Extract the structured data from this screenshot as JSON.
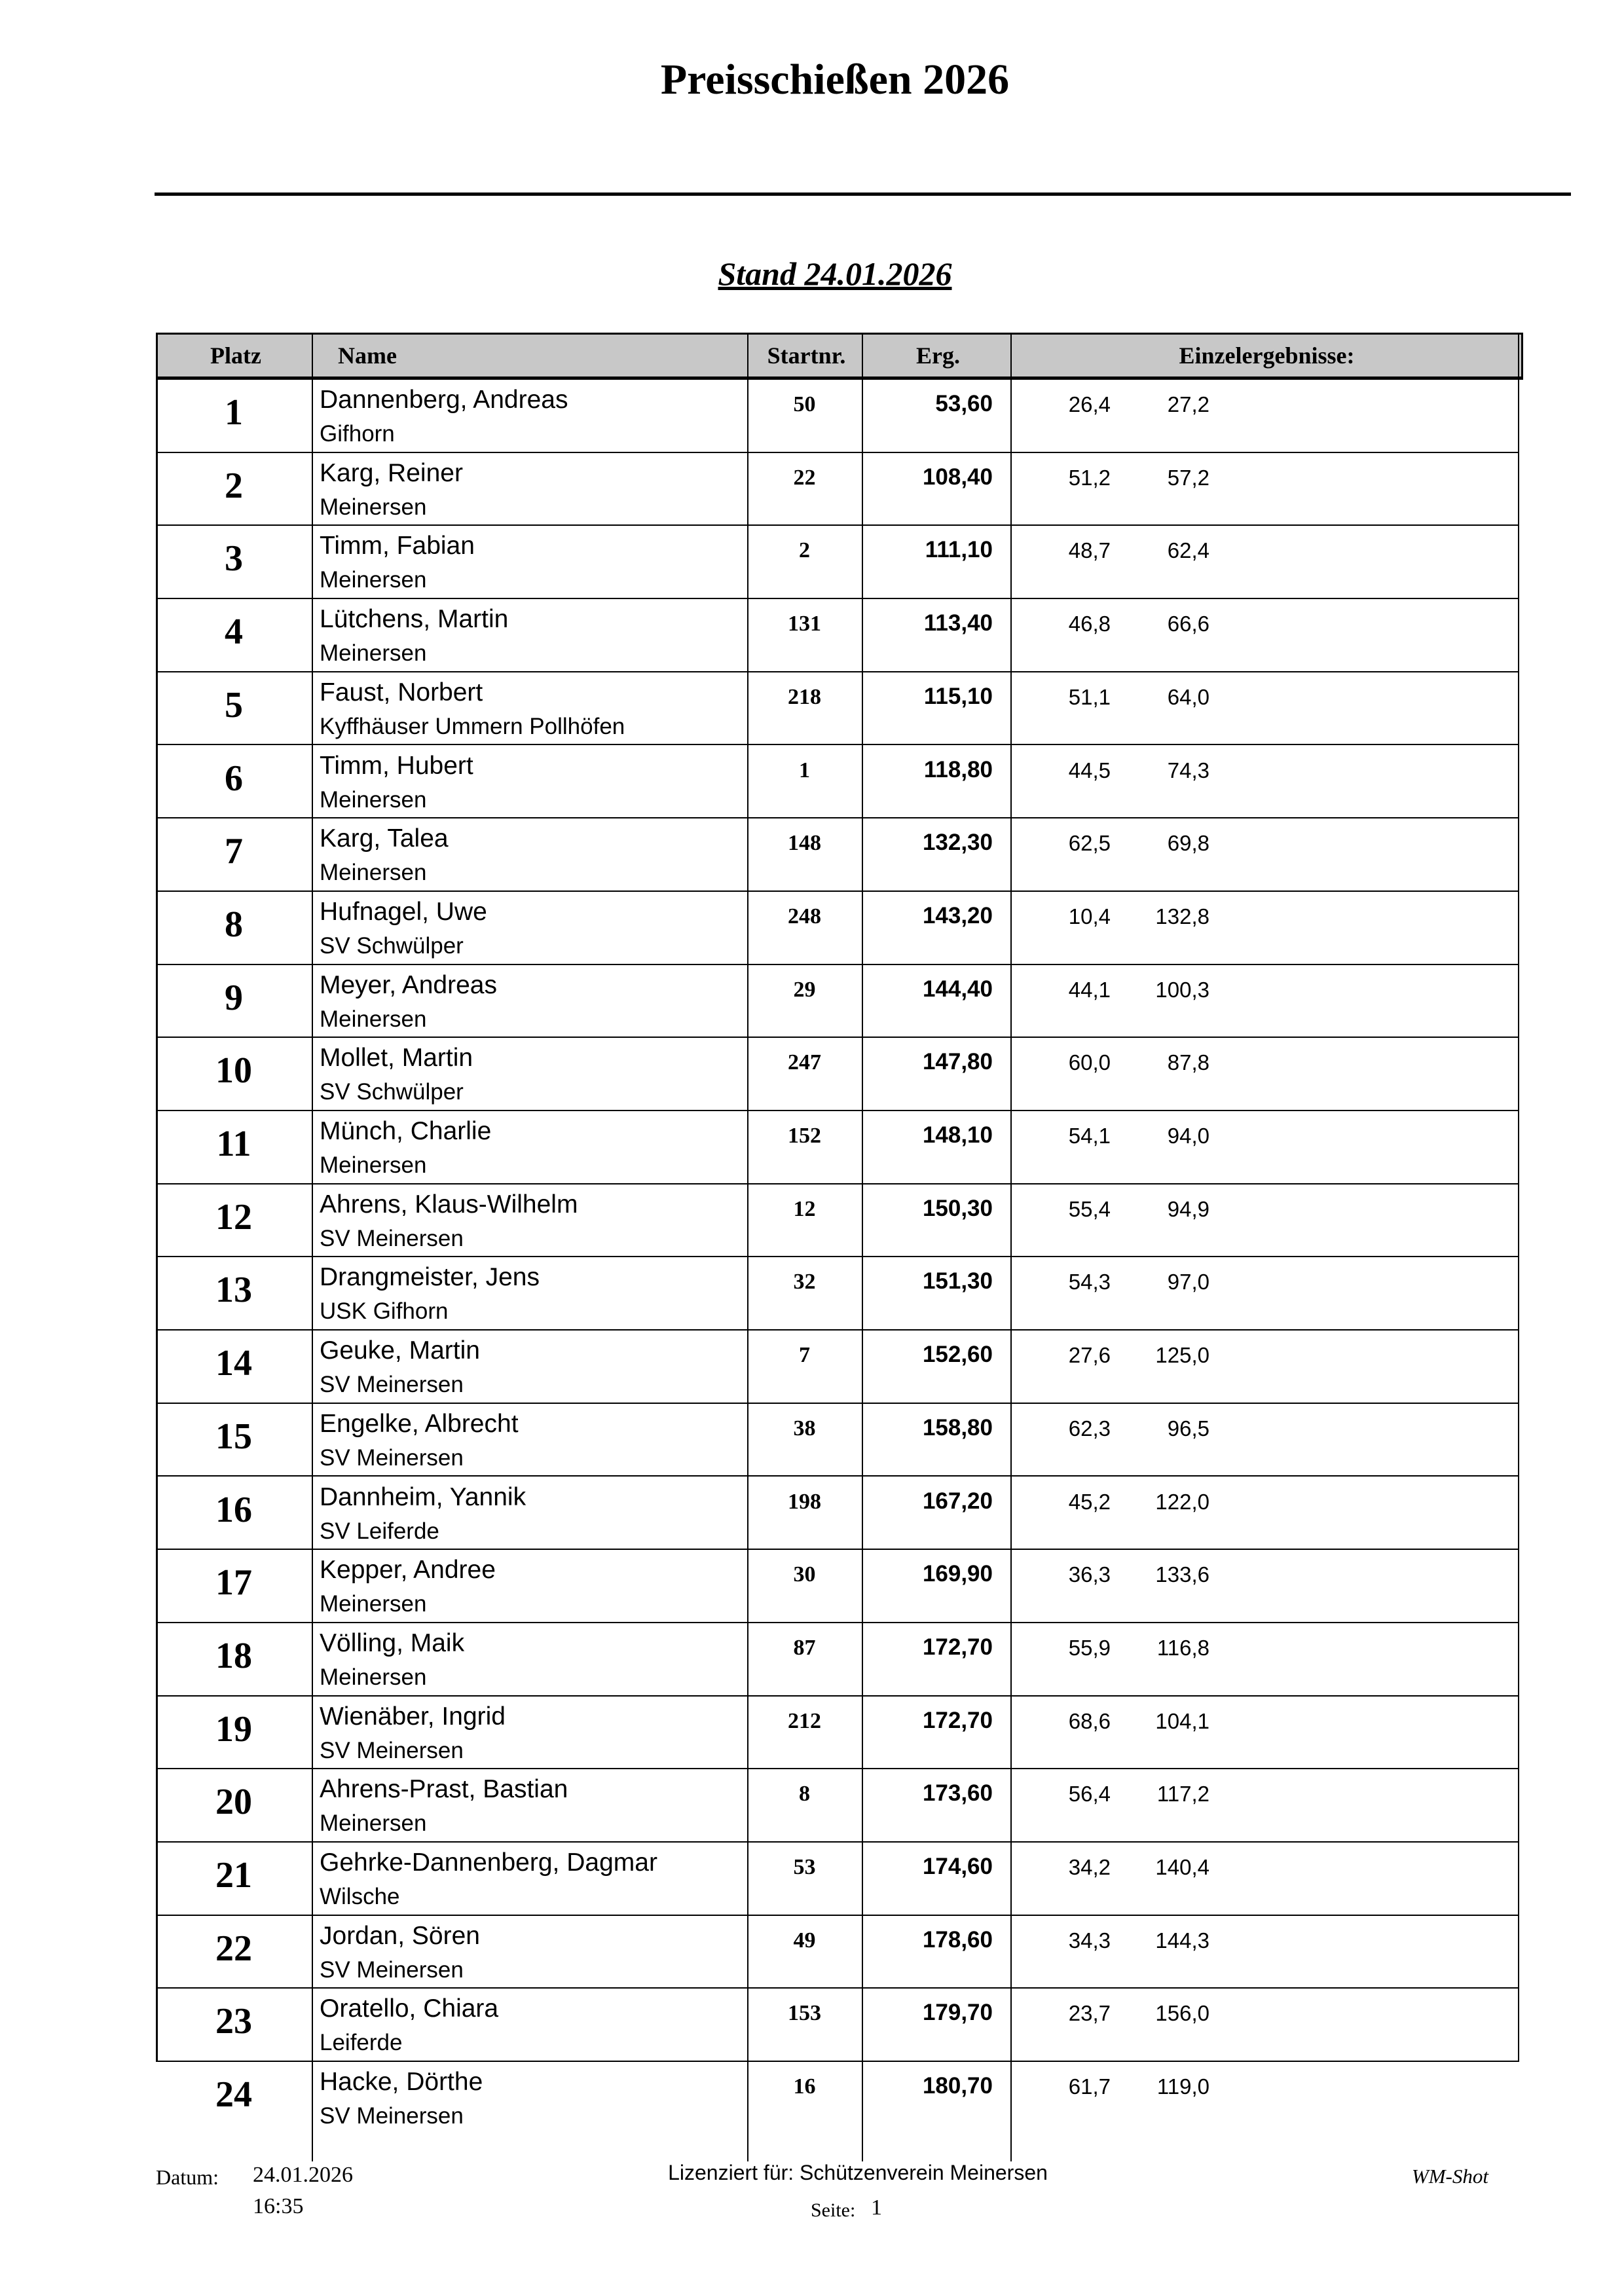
{
  "title": "Preisschießen 2026",
  "subtitle": "Stand 24.01.2026",
  "table": {
    "headers": [
      "Platz",
      "Name",
      "Startnr.",
      "Erg.",
      "Einzelergebnisse:"
    ],
    "rows": [
      {
        "platz": "1",
        "name": "Dannenberg, Andreas",
        "club": "Gifhorn",
        "startnr": "50",
        "erg": "53,60",
        "einzel": [
          "26,4",
          "27,2"
        ]
      },
      {
        "platz": "2",
        "name": "Karg, Reiner",
        "club": "Meinersen",
        "startnr": "22",
        "erg": "108,40",
        "einzel": [
          "51,2",
          "57,2"
        ]
      },
      {
        "platz": "3",
        "name": "Timm, Fabian",
        "club": "Meinersen",
        "startnr": "2",
        "erg": "111,10",
        "einzel": [
          "48,7",
          "62,4"
        ]
      },
      {
        "platz": "4",
        "name": "Lütchens, Martin",
        "club": "Meinersen",
        "startnr": "131",
        "erg": "113,40",
        "einzel": [
          "46,8",
          "66,6"
        ]
      },
      {
        "platz": "5",
        "name": "Faust, Norbert",
        "club": "Kyffhäuser Ummern Pollhöfen",
        "startnr": "218",
        "erg": "115,10",
        "einzel": [
          "51,1",
          "64,0"
        ]
      },
      {
        "platz": "6",
        "name": "Timm, Hubert",
        "club": "Meinersen",
        "startnr": "1",
        "erg": "118,80",
        "einzel": [
          "44,5",
          "74,3"
        ]
      },
      {
        "platz": "7",
        "name": "Karg, Talea",
        "club": "Meinersen",
        "startnr": "148",
        "erg": "132,30",
        "einzel": [
          "62,5",
          "69,8"
        ]
      },
      {
        "platz": "8",
        "name": "Hufnagel, Uwe",
        "club": "SV Schwülper",
        "startnr": "248",
        "erg": "143,20",
        "einzel": [
          "10,4",
          "132,8"
        ]
      },
      {
        "platz": "9",
        "name": "Meyer, Andreas",
        "club": "Meinersen",
        "startnr": "29",
        "erg": "144,40",
        "einzel": [
          "44,1",
          "100,3"
        ]
      },
      {
        "platz": "10",
        "name": "Mollet, Martin",
        "club": "SV Schwülper",
        "startnr": "247",
        "erg": "147,80",
        "einzel": [
          "60,0",
          "87,8"
        ]
      },
      {
        "platz": "11",
        "name": "Münch, Charlie",
        "club": "Meinersen",
        "startnr": "152",
        "erg": "148,10",
        "einzel": [
          "54,1",
          "94,0"
        ]
      },
      {
        "platz": "12",
        "name": "Ahrens, Klaus-Wilhelm",
        "club": "SV Meinersen",
        "startnr": "12",
        "erg": "150,30",
        "einzel": [
          "55,4",
          "94,9"
        ]
      },
      {
        "platz": "13",
        "name": "Drangmeister, Jens",
        "club": "USK Gifhorn",
        "startnr": "32",
        "erg": "151,30",
        "einzel": [
          "54,3",
          "97,0"
        ]
      },
      {
        "platz": "14",
        "name": "Geuke, Martin",
        "club": "SV Meinersen",
        "startnr": "7",
        "erg": "152,60",
        "einzel": [
          "27,6",
          "125,0"
        ]
      },
      {
        "platz": "15",
        "name": "Engelke, Albrecht",
        "club": "SV Meinersen",
        "startnr": "38",
        "erg": "158,80",
        "einzel": [
          "62,3",
          "96,5"
        ]
      },
      {
        "platz": "16",
        "name": "Dannheim, Yannik",
        "club": "SV Leiferde",
        "startnr": "198",
        "erg": "167,20",
        "einzel": [
          "45,2",
          "122,0"
        ]
      },
      {
        "platz": "17",
        "name": "Kepper, Andree",
        "club": "Meinersen",
        "startnr": "30",
        "erg": "169,90",
        "einzel": [
          "36,3",
          "133,6"
        ]
      },
      {
        "platz": "18",
        "name": "Völling, Maik",
        "club": "Meinersen",
        "startnr": "87",
        "erg": "172,70",
        "einzel": [
          "55,9",
          "116,8"
        ]
      },
      {
        "platz": "19",
        "name": "Wienäber, Ingrid",
        "club": "SV Meinersen",
        "startnr": "212",
        "erg": "172,70",
        "einzel": [
          "68,6",
          "104,1"
        ]
      },
      {
        "platz": "20",
        "name": "Ahrens-Prast, Bastian",
        "club": "Meinersen",
        "startnr": "8",
        "erg": "173,60",
        "einzel": [
          "56,4",
          "117,2"
        ]
      },
      {
        "platz": "21",
        "name": "Gehrke-Dannenberg, Dagmar",
        "club": "Wilsche",
        "startnr": "53",
        "erg": "174,60",
        "einzel": [
          "34,2",
          "140,4"
        ]
      },
      {
        "platz": "22",
        "name": "Jordan, Sören",
        "club": "SV Meinersen",
        "startnr": "49",
        "erg": "178,60",
        "einzel": [
          "34,3",
          "144,3"
        ]
      },
      {
        "platz": "23",
        "name": "Oratello, Chiara",
        "club": "Leiferde",
        "startnr": "153",
        "erg": "179,70",
        "einzel": [
          "23,7",
          "156,0"
        ]
      },
      {
        "platz": "24",
        "name": "Hacke, Dörthe",
        "club": "SV Meinersen",
        "startnr": "16",
        "erg": "180,70",
        "einzel": [
          "61,7",
          "119,0"
        ]
      }
    ]
  },
  "footer": {
    "datum_label": "Datum:",
    "date": "24.01.2026",
    "time": "16:35",
    "license": "Lizenziert für: Schützenverein Meinersen",
    "page_label": "Seite:",
    "page": "1",
    "software": "WM-Shot"
  }
}
